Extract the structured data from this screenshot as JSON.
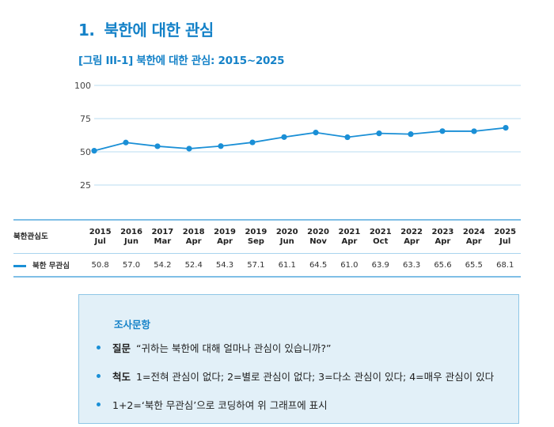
{
  "section": {
    "number": "1.",
    "title": "북한에 대한 관심"
  },
  "figure_caption": "[그림 III-1] 북한에 대한 관심: 2015~2025",
  "colors": {
    "accent": "#1582c8",
    "line": "#1a8fd6",
    "grid": "#b9ddf0",
    "box_bg": "#e2f0f8"
  },
  "chart_data": {
    "type": "line",
    "title": "[그림 III-1] 북한에 대한 관심: 2015~2025",
    "xlabel": "",
    "ylabel": "",
    "ylim": [
      25,
      100
    ],
    "yticks": [
      "100",
      "75",
      "50",
      "25"
    ],
    "ytick_values": [
      100,
      75,
      50,
      25
    ],
    "grid": true,
    "categories": [
      {
        "year": "2015",
        "month": "Jul"
      },
      {
        "year": "2016",
        "month": "Jun"
      },
      {
        "year": "2017",
        "month": "Mar"
      },
      {
        "year": "2018",
        "month": "Apr"
      },
      {
        "year": "2019",
        "month": "Apr"
      },
      {
        "year": "2019",
        "month": "Sep"
      },
      {
        "year": "2020",
        "month": "Jun"
      },
      {
        "year": "2020",
        "month": "Nov"
      },
      {
        "year": "2021",
        "month": "Apr"
      },
      {
        "year": "2021",
        "month": "Oct"
      },
      {
        "year": "2022",
        "month": "Apr"
      },
      {
        "year": "2023",
        "month": "Apr"
      },
      {
        "year": "2024",
        "month": "Apr"
      },
      {
        "year": "2025",
        "month": "Jul"
      }
    ],
    "series": [
      {
        "name": "북한 무관심",
        "values": [
          50.8,
          57.0,
          54.2,
          52.4,
          54.3,
          57.1,
          61.1,
          64.5,
          61.0,
          63.9,
          63.3,
          65.6,
          65.5,
          68.1
        ],
        "labels": [
          "50.8",
          "57.0",
          "54.2",
          "52.4",
          "54.3",
          "57.1",
          "61.1",
          "64.5",
          "61.0",
          "63.9",
          "63.3",
          "65.6",
          "65.5",
          "68.1"
        ]
      }
    ]
  },
  "table": {
    "header_label": "북한관심도",
    "row_label": "북한 무관심"
  },
  "survey": {
    "heading": "조사문항",
    "items": [
      {
        "bold": "질문",
        "text": "“귀하는 북한에 대해 얼마나 관심이 있습니까?”"
      },
      {
        "bold": "척도",
        "text": "1=전혀 관심이 없다; 2=별로 관심이 없다; 3=다소 관심이 있다; 4=매우 관심이 있다"
      },
      {
        "bold": "",
        "text": "1+2=‘북한 무관심’으로 코딩하여 위 그래프에 표시"
      }
    ]
  }
}
